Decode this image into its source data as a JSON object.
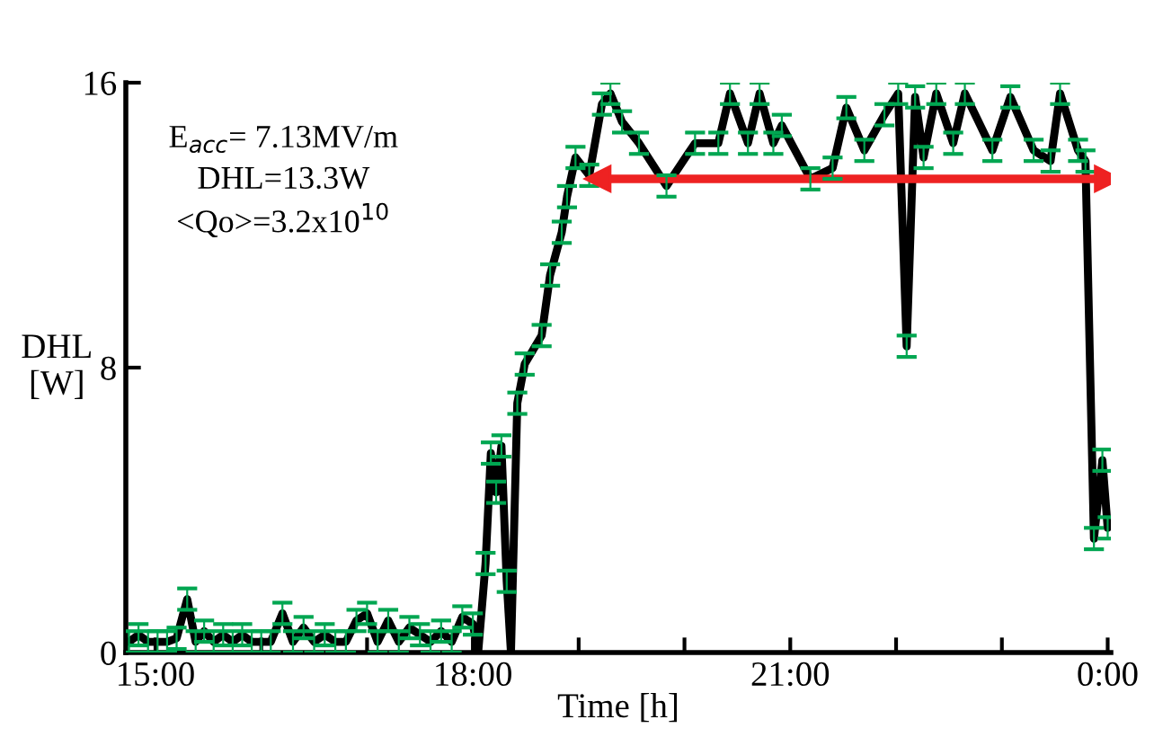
{
  "chart_data": {
    "type": "line",
    "xlabel": "Time [h]",
    "ylabel": "DHL\n[W]",
    "annotations": [
      "E$_{acc}$= 7.13MV/m",
      "DHL=13.3W",
      "<Qo>=3.2x10$^{10}$"
    ],
    "xlim": [
      14.72,
      24.03
    ],
    "ylim": [
      0,
      16
    ],
    "xticks": [
      {
        "value": 15,
        "label": "15:00"
      },
      {
        "value": 16,
        "label": null
      },
      {
        "value": 17,
        "label": null
      },
      {
        "value": 18,
        "label": "18:00"
      },
      {
        "value": 19,
        "label": null
      },
      {
        "value": 20,
        "label": null
      },
      {
        "value": 21,
        "label": "21:00"
      },
      {
        "value": 22,
        "label": null
      },
      {
        "value": 23,
        "label": null
      },
      {
        "value": 24,
        "label": "0:00"
      }
    ],
    "yticks": [
      0,
      8,
      16
    ],
    "line_style": "solid",
    "series": [
      {
        "color": "#000000",
        "x": [
          14.75,
          14.84,
          14.93,
          15.02,
          15.11,
          15.2,
          15.3,
          15.38,
          15.46,
          15.55,
          15.64,
          15.73,
          15.82,
          15.91,
          16.0,
          16.09,
          16.2,
          16.3,
          16.4,
          16.5,
          16.6,
          16.7,
          16.8,
          16.9,
          17.0,
          17.1,
          17.2,
          17.3,
          17.4,
          17.5,
          17.6,
          17.7,
          17.8,
          17.9,
          18.0,
          18.05,
          18.12,
          18.17,
          18.22,
          18.27,
          18.32,
          18.36,
          18.42,
          18.49,
          18.65,
          18.73,
          18.84,
          18.89,
          18.97,
          19.1,
          19.22,
          19.3,
          19.41,
          19.57,
          19.83,
          20.1,
          20.32,
          20.43,
          20.6,
          20.71,
          20.84,
          20.92,
          21.19,
          21.4,
          21.53,
          21.7,
          21.89,
          22.02,
          22.1,
          22.18,
          22.26,
          22.38,
          22.54,
          22.65,
          22.91,
          23.08,
          23.3,
          23.46,
          23.55,
          23.72,
          23.79,
          23.87,
          23.95,
          24.0
        ],
        "values": [
          0.3,
          0.5,
          0.3,
          0.3,
          0.3,
          0.4,
          1.5,
          0.3,
          0.6,
          0.3,
          0.5,
          0.3,
          0.5,
          0.3,
          0.3,
          0.3,
          1.1,
          0.3,
          0.7,
          0.3,
          0.5,
          0.3,
          0.3,
          0.9,
          1.1,
          0.3,
          0.9,
          0.3,
          0.7,
          0.5,
          0.3,
          0.6,
          0.3,
          1.0,
          0.8,
          0.0,
          2.5,
          5.6,
          4.5,
          5.8,
          2.0,
          0.0,
          7.0,
          8.1,
          8.9,
          10.6,
          11.8,
          12.8,
          13.9,
          13.4,
          15.4,
          15.7,
          14.9,
          14.3,
          13.1,
          14.3,
          14.3,
          15.7,
          14.3,
          15.7,
          14.3,
          14.8,
          13.3,
          13.6,
          15.3,
          14.1,
          15.1,
          15.7,
          8.6,
          15.6,
          13.9,
          15.7,
          14.3,
          15.7,
          14.1,
          15.6,
          14.1,
          13.8,
          15.7,
          14.1,
          13.8,
          3.2,
          5.4,
          3.5
        ],
        "errors": [
          0.3,
          0.3,
          0.3,
          0.3,
          0.3,
          0.3,
          0.3,
          0.3,
          0.3,
          0.3,
          0.3,
          0.3,
          0.3,
          0.3,
          0.3,
          0.3,
          0.3,
          0.3,
          0.3,
          0.3,
          0.3,
          0.3,
          0.3,
          0.3,
          0.3,
          0.3,
          0.3,
          0.3,
          0.3,
          0.3,
          0.3,
          0.3,
          0.3,
          0.3,
          0.3,
          null,
          0.3,
          0.3,
          0.3,
          0.3,
          0.3,
          null,
          0.3,
          0.3,
          0.3,
          0.3,
          0.3,
          0.3,
          0.3,
          0.3,
          0.3,
          0.3,
          0.3,
          0.3,
          0.3,
          0.3,
          0.3,
          0.3,
          0.3,
          0.3,
          0.3,
          0.3,
          0.3,
          0.3,
          0.3,
          0.3,
          0.3,
          0.3,
          0.3,
          0.3,
          0.3,
          0.3,
          0.3,
          0.3,
          0.3,
          0.3,
          0.3,
          0.3,
          0.3,
          0.3,
          0.3,
          0.3,
          0.3,
          0.3
        ]
      },
      {
        "color": "#ee2222",
        "marker": "triangle",
        "x": [
          19.18,
          24.0
        ],
        "values": [
          13.3,
          13.3
        ]
      }
    ]
  }
}
